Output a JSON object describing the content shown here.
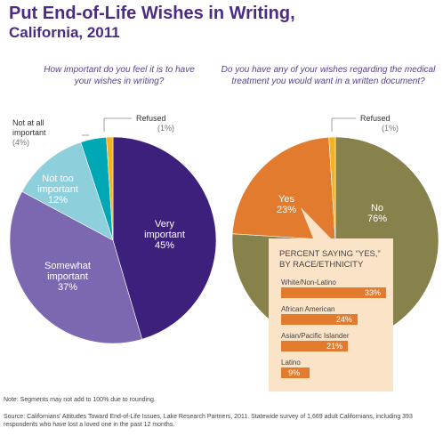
{
  "header": {
    "title": "Put End-of-Life Wishes in Writing,",
    "subtitle": "California, 2011"
  },
  "chart_data": [
    {
      "type": "pie",
      "title": "How important do you feel it is to have your wishes in writing?",
      "slices": [
        {
          "name": "Very important",
          "value": 45,
          "label": "45%",
          "color": "#3d1f7c"
        },
        {
          "name": "Somewhat important",
          "value": 37,
          "label": "37%",
          "color": "#7b68b0"
        },
        {
          "name": "Not too important",
          "value": 12,
          "label": "12%",
          "color": "#8ecfdc"
        },
        {
          "name": "Not at all important",
          "value": 4,
          "label": "(4%)",
          "color": "#00a7b5"
        },
        {
          "name": "Refused",
          "value": 1,
          "label": "(1%)",
          "color": "#f4b21b"
        }
      ]
    },
    {
      "type": "pie",
      "title": "Do you have any of your wishes regarding the medical treatment you would want in a written document?",
      "slices": [
        {
          "name": "No",
          "value": 76,
          "label": "76%",
          "color": "#87824c"
        },
        {
          "name": "Yes",
          "value": 23,
          "label": "23%",
          "color": "#e27b2d"
        },
        {
          "name": "Refused",
          "value": 1,
          "label": "(1%)",
          "color": "#f4b21b"
        }
      ]
    },
    {
      "type": "bar",
      "title": "PERCENT SAYING “YES,” BY RACE/ETHNICITY",
      "categories": [
        "White/Non-Latino",
        "African American",
        "Asian/Pacific Islander",
        "Latino"
      ],
      "values": [
        33,
        24,
        21,
        9
      ],
      "value_labels": [
        "33%",
        "24%",
        "21%",
        "9%"
      ],
      "xlim": [
        0,
        33
      ]
    }
  ],
  "labels": {
    "very": {
      "name": "Very important",
      "line1": "Very",
      "line2": "important",
      "pct": "45%"
    },
    "somewhat": {
      "line1": "Somewhat",
      "line2": "important",
      "pct": "37%"
    },
    "nottoo": {
      "line1": "Not too",
      "line2": "important",
      "pct": "12%"
    },
    "notatall": {
      "line1": "Not at all",
      "line2": "important",
      "pct": "(4%)"
    },
    "refused1": {
      "text": "Refused",
      "pct": "(1%)"
    },
    "no": {
      "text": "No",
      "pct": "76%"
    },
    "yes": {
      "text": "Yes",
      "pct": "23%"
    },
    "refused2": {
      "text": "Refused",
      "pct": "(1%)"
    }
  },
  "footer": {
    "note": "Note: Segments may not add to 100% due to rounding.",
    "source": "Source: Californians' Attitudes Toward End-of-Life Issues, Lake Research Partners, 2011. Statewide survey of 1,669 adult Californians, including 393 respondents who have lost a loved one in the past 12 months."
  }
}
